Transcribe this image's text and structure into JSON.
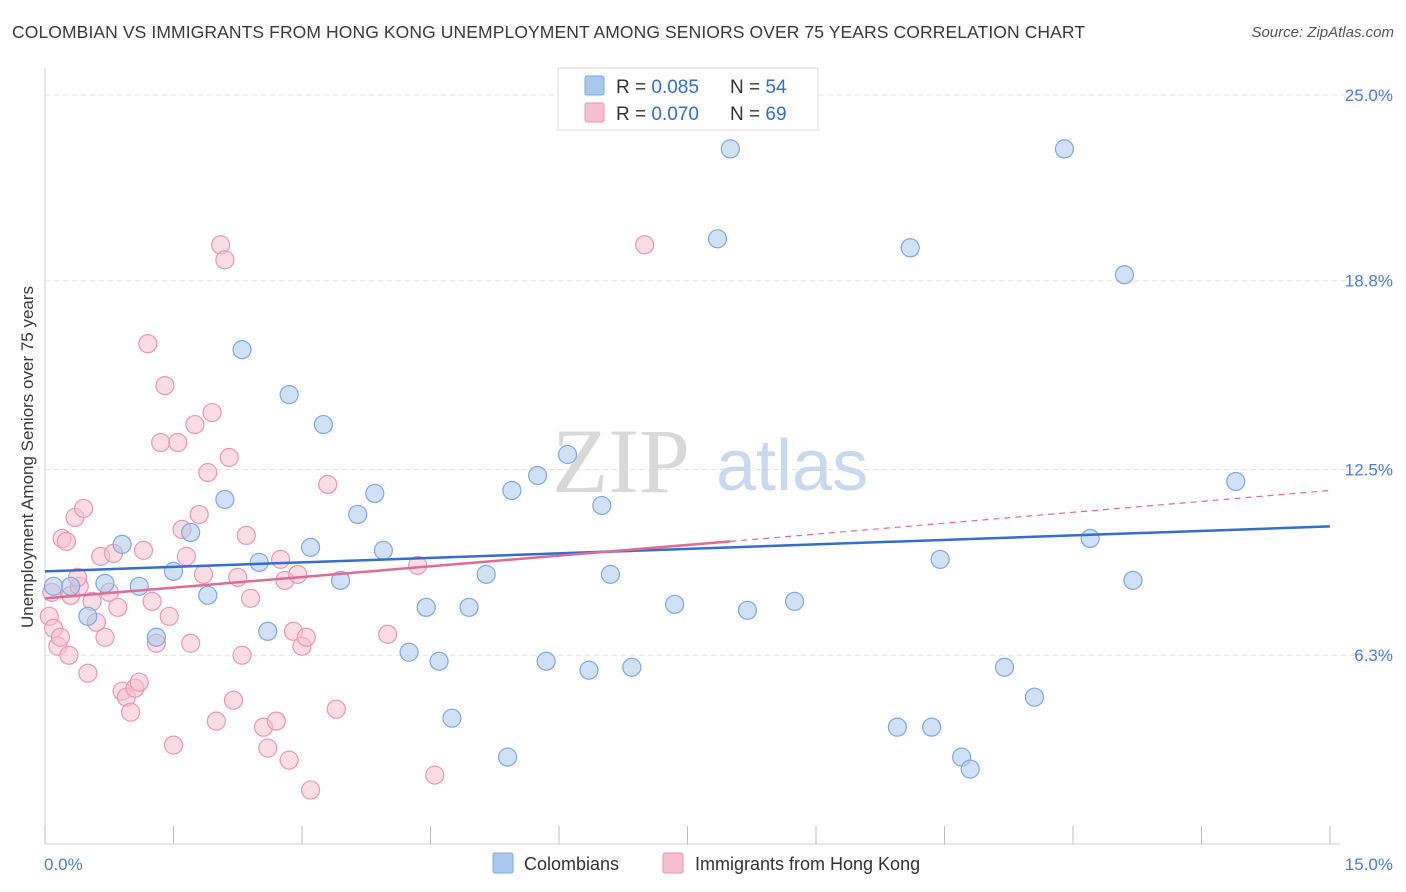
{
  "title": "COLOMBIAN VS IMMIGRANTS FROM HONG KONG UNEMPLOYMENT AMONG SENIORS OVER 75 YEARS CORRELATION CHART",
  "source": "Source: ZipAtlas.com",
  "watermark": {
    "zip": "ZIP",
    "atlas": "atlas"
  },
  "colors": {
    "blue": "#a9c8ee",
    "blue_stroke": "#7fa8dc",
    "blue_line": "#2f6fcf",
    "pink": "#f6bfd0",
    "pink_stroke": "#eb96b2",
    "pink_line": "#e06a94",
    "tick_text": "#4a7fd0",
    "value_text": "#2f6fcf"
  },
  "legend_box": [
    {
      "r_label": "R = ",
      "r_value": "0.085",
      "n_label": "N = ",
      "n_value": "54"
    },
    {
      "r_label": "R = ",
      "r_value": "0.070",
      "n_label": "N = ",
      "n_value": "69"
    }
  ],
  "chart_data": {
    "type": "scatter",
    "title": "COLOMBIAN VS IMMIGRANTS FROM HONG KONG UNEMPLOYMENT AMONG SENIORS OVER 75 YEARS CORRELATION CHART",
    "xlabel": "",
    "ylabel": "Unemployment Among Seniors over 75 years",
    "xlim": [
      0,
      15
    ],
    "ylim": [
      0,
      25.5
    ],
    "x_tick_labels": [
      "0.0%",
      "15.0%"
    ],
    "y_ticks": [
      6.3,
      12.5,
      18.8,
      25.0
    ],
    "y_tick_labels": [
      "6.3%",
      "12.5%",
      "18.8%",
      "25.0%"
    ],
    "grid": true,
    "legend_position": "bottom-center",
    "series": [
      {
        "name": "Colombians",
        "color": "#a9c8ee",
        "trend": {
          "x": [
            0.0,
            15.0
          ],
          "y": [
            9.1,
            10.6
          ]
        },
        "points": [
          [
            0.1,
            8.6
          ],
          [
            0.3,
            8.6
          ],
          [
            0.5,
            7.6
          ],
          [
            0.7,
            8.7
          ],
          [
            0.9,
            10.0
          ],
          [
            1.1,
            8.6
          ],
          [
            1.3,
            6.9
          ],
          [
            1.5,
            9.1
          ],
          [
            1.7,
            10.4
          ],
          [
            1.9,
            8.3
          ],
          [
            2.1,
            11.5
          ],
          [
            2.3,
            16.5
          ],
          [
            2.5,
            9.4
          ],
          [
            2.6,
            7.1
          ],
          [
            2.85,
            15.0
          ],
          [
            3.1,
            9.9
          ],
          [
            3.25,
            14.0
          ],
          [
            3.45,
            8.8
          ],
          [
            3.65,
            11.0
          ],
          [
            3.85,
            11.7
          ],
          [
            3.95,
            9.8
          ],
          [
            4.25,
            6.4
          ],
          [
            4.45,
            7.9
          ],
          [
            4.6,
            6.1
          ],
          [
            4.75,
            4.2
          ],
          [
            4.95,
            7.9
          ],
          [
            5.15,
            9.0
          ],
          [
            5.4,
            2.9
          ],
          [
            5.45,
            11.8
          ],
          [
            5.75,
            12.3
          ],
          [
            5.85,
            6.1
          ],
          [
            6.1,
            13.0
          ],
          [
            6.35,
            5.8
          ],
          [
            6.5,
            11.3
          ],
          [
            6.6,
            9.0
          ],
          [
            6.85,
            5.9
          ],
          [
            7.35,
            8.0
          ],
          [
            7.85,
            20.2
          ],
          [
            8.0,
            23.2
          ],
          [
            8.2,
            7.8
          ],
          [
            8.75,
            8.1
          ],
          [
            9.95,
            3.9
          ],
          [
            10.1,
            19.9
          ],
          [
            10.35,
            3.9
          ],
          [
            10.45,
            9.5
          ],
          [
            10.7,
            2.9
          ],
          [
            10.8,
            2.5
          ],
          [
            11.2,
            5.9
          ],
          [
            11.55,
            4.9
          ],
          [
            11.9,
            23.2
          ],
          [
            12.2,
            10.2
          ],
          [
            12.6,
            19.0
          ],
          [
            12.7,
            8.8
          ],
          [
            13.9,
            12.1
          ]
        ]
      },
      {
        "name": "Immigrants from Hong Kong",
        "color": "#f6bfd0",
        "trend": {
          "x": [
            0.0,
            8.0
          ],
          "y": [
            8.2,
            10.1
          ]
        },
        "trend_dashed": {
          "x": [
            8.0,
            15.0
          ],
          "y": [
            10.1,
            11.8
          ]
        },
        "points": [
          [
            0.05,
            7.6
          ],
          [
            0.1,
            7.2
          ],
          [
            0.15,
            6.6
          ],
          [
            0.2,
            10.2
          ],
          [
            0.25,
            10.1
          ],
          [
            0.3,
            8.3
          ],
          [
            0.35,
            10.9
          ],
          [
            0.4,
            8.6
          ],
          [
            0.45,
            11.2
          ],
          [
            0.5,
            5.7
          ],
          [
            0.55,
            8.1
          ],
          [
            0.6,
            7.4
          ],
          [
            0.65,
            9.6
          ],
          [
            0.7,
            6.9
          ],
          [
            0.75,
            8.4
          ],
          [
            0.8,
            9.7
          ],
          [
            0.85,
            7.9
          ],
          [
            0.9,
            5.1
          ],
          [
            0.95,
            4.9
          ],
          [
            1.0,
            4.4
          ],
          [
            1.05,
            5.2
          ],
          [
            1.1,
            5.4
          ],
          [
            1.15,
            9.8
          ],
          [
            1.2,
            16.7
          ],
          [
            1.25,
            8.1
          ],
          [
            1.3,
            6.7
          ],
          [
            1.35,
            13.4
          ],
          [
            1.4,
            15.3
          ],
          [
            1.45,
            7.6
          ],
          [
            1.5,
            3.3
          ],
          [
            1.55,
            13.4
          ],
          [
            1.6,
            10.5
          ],
          [
            1.65,
            9.6
          ],
          [
            1.7,
            6.7
          ],
          [
            1.75,
            14.0
          ],
          [
            1.8,
            11.0
          ],
          [
            1.85,
            9.0
          ],
          [
            1.9,
            12.4
          ],
          [
            1.95,
            14.4
          ],
          [
            2.0,
            4.1
          ],
          [
            2.05,
            20.0
          ],
          [
            2.1,
            19.5
          ],
          [
            2.15,
            12.9
          ],
          [
            2.2,
            4.8
          ],
          [
            2.25,
            8.9
          ],
          [
            2.3,
            6.3
          ],
          [
            2.35,
            10.3
          ],
          [
            2.4,
            8.2
          ],
          [
            2.55,
            3.9
          ],
          [
            2.6,
            3.2
          ],
          [
            2.7,
            4.1
          ],
          [
            2.75,
            9.5
          ],
          [
            2.8,
            8.8
          ],
          [
            2.85,
            2.8
          ],
          [
            2.9,
            7.1
          ],
          [
            2.95,
            9.0
          ],
          [
            3.0,
            6.6
          ],
          [
            3.05,
            6.9
          ],
          [
            3.1,
            1.8
          ],
          [
            3.3,
            12.0
          ],
          [
            3.4,
            4.5
          ],
          [
            4.0,
            7.0
          ],
          [
            4.35,
            9.3
          ],
          [
            4.55,
            2.3
          ],
          [
            7.0,
            20.0
          ],
          [
            0.08,
            8.4
          ],
          [
            0.18,
            6.9
          ],
          [
            0.28,
            6.3
          ],
          [
            0.38,
            8.9
          ]
        ]
      }
    ]
  }
}
